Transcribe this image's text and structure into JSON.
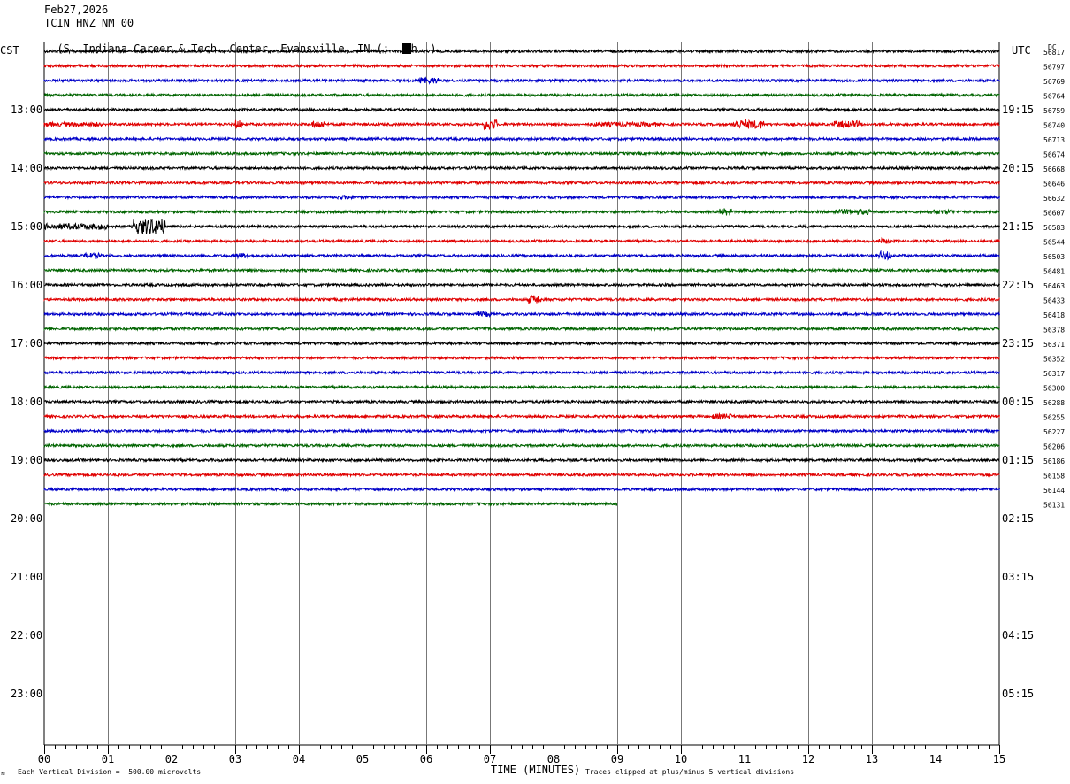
{
  "header": {
    "date": "Feb27,2026",
    "station": "TCIN HNZ NM 00",
    "location": "(S. Indiana Career & Tech. Center, Evansville, IN (;  ",
    "location_end": "h  )"
  },
  "left_axis_label": "CST",
  "right_axis_label": "UTC",
  "dc_label": "DC",
  "footer": {
    "mark": "≈",
    "division": "Each Vertical Division =  500.00 microvolts",
    "xlabel": "TIME (MINUTES)",
    "clip_note": "Traces clipped at plus/minus 5 vertical divisions"
  },
  "chart_data": {
    "type": "line",
    "title": "TCIN HNZ NM 00",
    "xlabel": "TIME (MINUTES)",
    "x_ticks": [
      "00",
      "01",
      "02",
      "03",
      "04",
      "05",
      "06",
      "07",
      "08",
      "09",
      "10",
      "11",
      "12",
      "13",
      "14",
      "15"
    ],
    "xlim": [
      0,
      15
    ],
    "left_hour_labels": [
      "13:00",
      "14:00",
      "15:00",
      "16:00",
      "17:00",
      "18:00",
      "19:00",
      "20:00",
      "21:00",
      "22:00",
      "23:00"
    ],
    "right_hour_labels": [
      "19:15",
      "20:15",
      "21:15",
      "22:15",
      "23:15",
      "00:15",
      "01:15",
      "02:15",
      "03:15",
      "04:15",
      "05:15"
    ],
    "dc_values": [
      "56817",
      "56797",
      "56769",
      "56764",
      "56759",
      "56740",
      "56713",
      "56674",
      "56668",
      "56646",
      "56632",
      "56607",
      "56583",
      "56544",
      "56503",
      "56481",
      "56463",
      "56433",
      "56418",
      "56378",
      "56371",
      "56352",
      "56317",
      "56300",
      "56288",
      "56255",
      "56227",
      "56206",
      "56186",
      "56158",
      "56144",
      "56131"
    ],
    "trace_colors": [
      "#000000",
      "#e00000",
      "#0000c8",
      "#006400"
    ],
    "trace_count": 32,
    "last_trace_end_minute": 9.0
  }
}
